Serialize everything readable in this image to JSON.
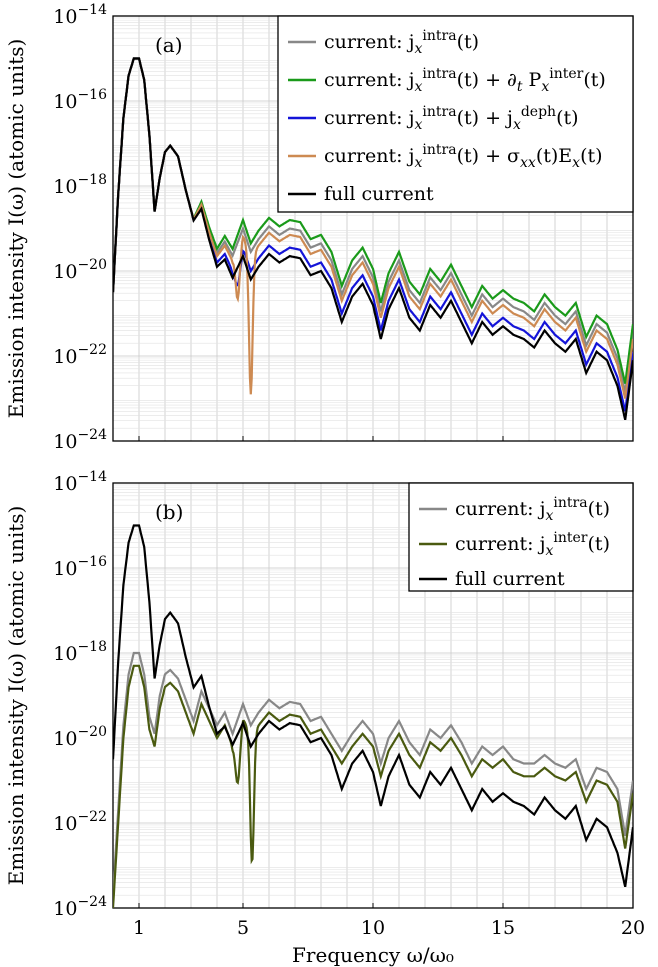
{
  "chart_data": [
    {
      "type": "line",
      "panel_label": "(a)",
      "xlabel": "",
      "ylabel": "Emission intensity I(ω) (atomic units)",
      "xlim": [
        0,
        20
      ],
      "ylim_log10": [
        -24,
        -14
      ],
      "yscale": "log",
      "grid": true,
      "legend_position": "top-right",
      "x_ticks": [
        1,
        5,
        10,
        15,
        20
      ],
      "y_ticks": [
        "10^{-24}",
        "10^{-22}",
        "10^{-20}",
        "10^{-18}",
        "10^{-16}",
        "10^{-14}"
      ],
      "series": [
        {
          "name": "current: j_x^intra(t)",
          "color": "#888888",
          "offset": 0.45,
          "dips": []
        },
        {
          "name": "current: j_x^intra(t) + ∂_t P_x^inter(t)",
          "color": "#1a9a1a",
          "offset": 0.65,
          "dips": []
        },
        {
          "name": "current: j_x^intra(t) + j_x^deph(t)",
          "color": "#1414d8",
          "offset": 0.0,
          "dips": [
            [
              4.8,
              0.6,
              0.1
            ]
          ]
        },
        {
          "name": "current: j_x^intra(t) + σ_xx(t)E_x(t)",
          "color": "#cd8a52",
          "offset": 0.3,
          "dips": [
            [
              4.8,
              1.2,
              0.08
            ],
            [
              5.3,
              3.2,
              0.07
            ]
          ]
        },
        {
          "name": "full current",
          "color": "#000000",
          "offset": -0.2,
          "dips": []
        }
      ]
    },
    {
      "type": "line",
      "panel_label": "(b)",
      "xlabel": "Frequency ω/ω₀",
      "ylabel": "Emission intensity I(ω) (atomic units)",
      "xlim": [
        0,
        20
      ],
      "ylim_log10": [
        -24,
        -14
      ],
      "yscale": "log",
      "grid": true,
      "legend_position": "top-right",
      "x_ticks": [
        1,
        5,
        10,
        15,
        20
      ],
      "y_ticks": [
        "10^{-24}",
        "10^{-22}",
        "10^{-20}",
        "10^{-18}",
        "10^{-16}",
        "10^{-14}"
      ],
      "series": [
        {
          "name": "current: j_x^intra(t)",
          "color": "#888888",
          "offset": 0.3,
          "dips": []
        },
        {
          "name": "current: j_x^inter(t)",
          "color": "#4a5a10",
          "offset": 0.05,
          "dips": [
            [
              4.8,
              1.2,
              0.09
            ],
            [
              5.35,
              3.0,
              0.07
            ]
          ]
        },
        {
          "name": "full current",
          "color": "#000000",
          "offset": -0.2,
          "dips": []
        }
      ]
    }
  ],
  "curve_points": {
    "x": [
      0.0,
      0.2,
      0.4,
      0.6,
      0.8,
      1.0,
      1.2,
      1.4,
      1.6,
      1.8,
      2.0,
      2.2,
      2.5,
      2.8,
      3.1,
      3.4,
      3.7,
      4.0,
      4.3,
      4.6,
      5.0,
      5.3,
      5.6,
      6.0,
      6.4,
      6.8,
      7.2,
      7.6,
      8.0,
      8.4,
      8.8,
      9.2,
      9.6,
      10.0,
      10.3,
      10.6,
      11.0,
      11.4,
      11.8,
      12.2,
      12.6,
      13.0,
      13.4,
      13.8,
      14.2,
      14.6,
      15.0,
      15.4,
      15.8,
      16.2,
      16.6,
      17.0,
      17.4,
      17.8,
      18.2,
      18.6,
      19.0,
      19.4,
      19.7,
      20.0
    ],
    "full": [
      -20.5,
      -18.2,
      -16.4,
      -15.4,
      -15.0,
      -15.0,
      -15.5,
      -16.8,
      -18.6,
      -17.8,
      -17.2,
      -17.05,
      -17.3,
      -18.1,
      -18.8,
      -18.5,
      -19.2,
      -19.8,
      -19.6,
      -20.0,
      -19.45,
      -20.0,
      -19.7,
      -19.4,
      -19.6,
      -19.45,
      -19.5,
      -19.9,
      -19.8,
      -20.2,
      -21.0,
      -20.4,
      -20.1,
      -20.6,
      -21.4,
      -20.7,
      -20.2,
      -20.9,
      -21.2,
      -20.6,
      -20.9,
      -20.5,
      -21.0,
      -21.5,
      -21.0,
      -21.3,
      -21.1,
      -21.3,
      -21.4,
      -21.6,
      -21.2,
      -21.5,
      -21.7,
      -21.4,
      -22.2,
      -21.7,
      -21.9,
      -22.5,
      -23.3,
      -21.9
    ],
    "full_b": [
      -20.5,
      -18.2,
      -16.4,
      -15.4,
      -15.0,
      -15.0,
      -15.5,
      -16.8,
      -18.6,
      -17.8,
      -17.2,
      -17.05,
      -17.3,
      -18.1,
      -18.8,
      -18.5,
      -19.2,
      -19.8,
      -19.6,
      -20.0,
      -19.45,
      -20.0,
      -19.7,
      -19.4,
      -19.6,
      -19.45,
      -19.5,
      -19.9,
      -19.8,
      -20.2,
      -21.0,
      -20.4,
      -20.1,
      -20.6,
      -21.4,
      -20.7,
      -20.2,
      -20.9,
      -21.2,
      -20.6,
      -20.9,
      -20.5,
      -21.0,
      -21.5,
      -21.0,
      -21.3,
      -21.1,
      -21.3,
      -21.4,
      -21.6,
      -21.2,
      -21.5,
      -21.7,
      -21.4,
      -22.2,
      -21.7,
      -21.9,
      -22.5,
      -23.3,
      -21.9
    ],
    "low_b": [
      -24.0,
      -22.0,
      -20.0,
      -18.8,
      -18.3,
      -18.3,
      -18.8,
      -19.8,
      -20.2,
      -19.3,
      -18.8,
      -18.7,
      -18.9,
      -19.4,
      -19.9,
      -19.2,
      -19.6,
      -20.0,
      -19.7,
      -20.2,
      -19.5,
      -20.0,
      -19.7,
      -19.4,
      -19.6,
      -19.45,
      -19.5,
      -19.9,
      -19.8,
      -20.2,
      -20.6,
      -20.2,
      -19.9,
      -20.2,
      -20.9,
      -20.3,
      -19.9,
      -20.4,
      -20.7,
      -20.1,
      -20.3,
      -20.0,
      -20.4,
      -20.9,
      -20.5,
      -20.7,
      -20.5,
      -20.8,
      -20.9,
      -20.9,
      -20.7,
      -20.9,
      -21.0,
      -20.8,
      -21.5,
      -21.0,
      -21.1,
      -21.5,
      -22.6,
      -21.3
    ]
  }
}
